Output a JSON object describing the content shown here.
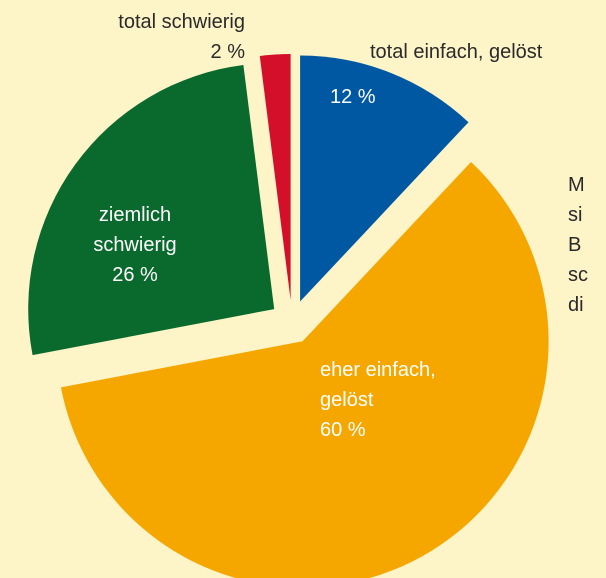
{
  "chart_data": {
    "type": "pie",
    "categories": [
      "total einfach, gelöst",
      "eher einfach, gelöst",
      "ziemlich schwierig",
      "total schwierig"
    ],
    "values": [
      12,
      60,
      26,
      2
    ],
    "value_labels": [
      "12 %",
      "60 %",
      "26 %",
      "2 %"
    ],
    "colors": [
      "#0058a2",
      "#f5a700",
      "#0a6a2e",
      "#d40f2a"
    ],
    "exploded": true,
    "annotation_lines": [
      "M",
      "si",
      "B",
      "sc",
      "di"
    ]
  }
}
